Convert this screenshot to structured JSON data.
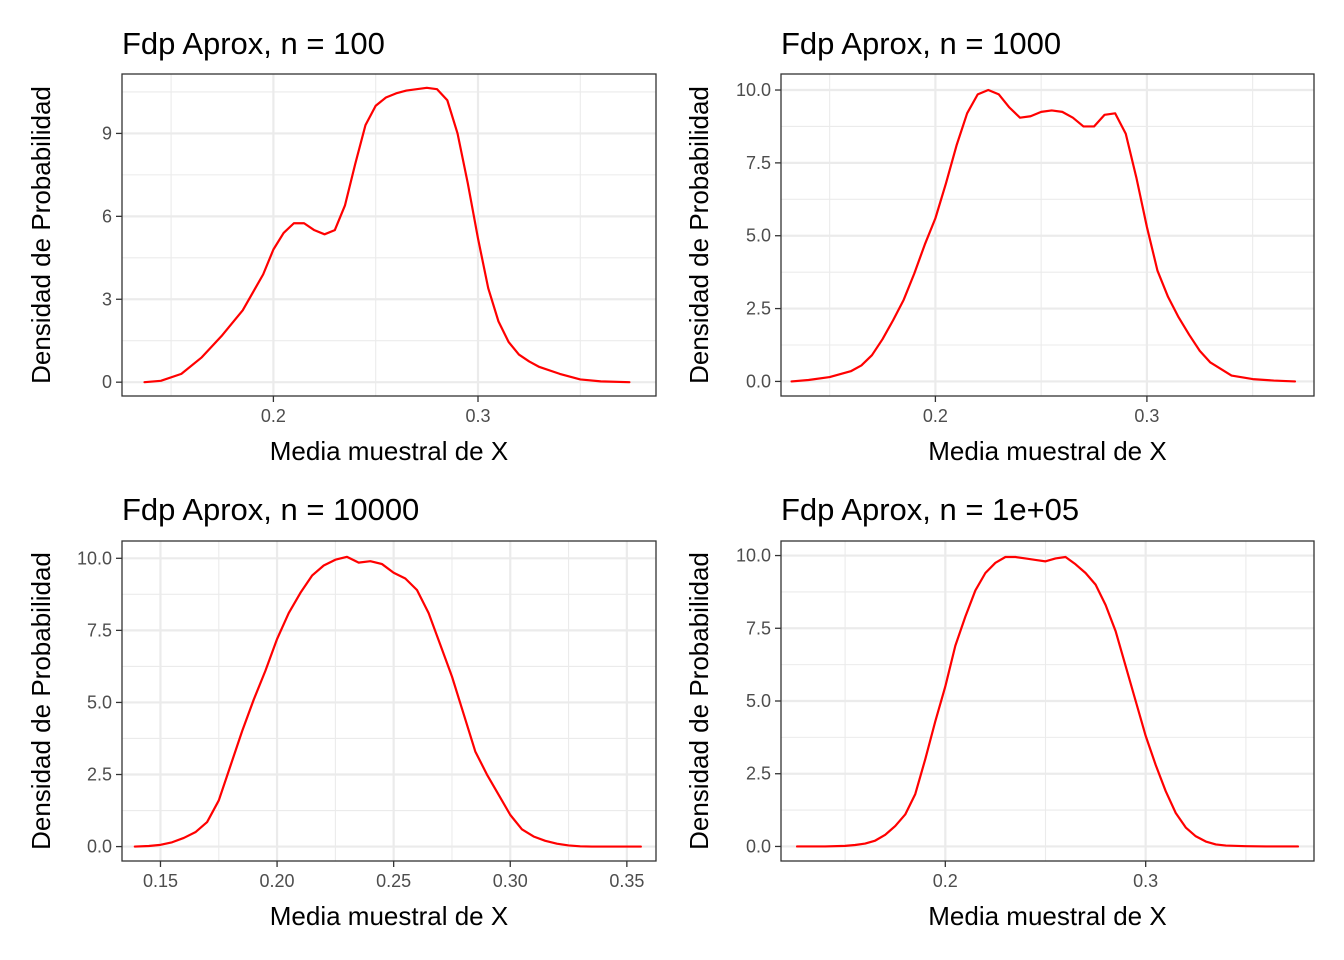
{
  "chart_data": [
    {
      "type": "line",
      "title": "Fdp Aprox, n = 100",
      "xlabel": "Media muestral de X",
      "ylabel": "Densidad de Probabilidad",
      "xlim": [
        0.126,
        0.387
      ],
      "ylim": [
        -0.5,
        11.15
      ],
      "xticks": [
        0.2,
        0.3
      ],
      "xtick_labels": [
        "0.2",
        "0.3"
      ],
      "yticks": [
        0,
        3,
        6,
        9
      ],
      "ytick_labels": [
        "0",
        "3",
        "6",
        "9"
      ],
      "grid": true,
      "color": "#ff0000",
      "series": [
        {
          "x": [
            0.137,
            0.145,
            0.155,
            0.165,
            0.175,
            0.185,
            0.195,
            0.2,
            0.205,
            0.21,
            0.215,
            0.22,
            0.225,
            0.23,
            0.235,
            0.24,
            0.245,
            0.25,
            0.255,
            0.26,
            0.265,
            0.27,
            0.275,
            0.28,
            0.285,
            0.29,
            0.295,
            0.3,
            0.305,
            0.31,
            0.315,
            0.32,
            0.325,
            0.33,
            0.34,
            0.35,
            0.36,
            0.374
          ],
          "y": [
            0,
            0.05,
            0.3,
            0.9,
            1.7,
            2.6,
            3.9,
            4.8,
            5.4,
            5.75,
            5.75,
            5.5,
            5.35,
            5.5,
            6.4,
            7.9,
            9.3,
            10.0,
            10.3,
            10.45,
            10.55,
            10.6,
            10.65,
            10.6,
            10.2,
            9.0,
            7.2,
            5.2,
            3.4,
            2.2,
            1.45,
            1.0,
            0.75,
            0.55,
            0.3,
            0.1,
            0.03,
            0
          ]
        }
      ]
    },
    {
      "type": "line",
      "title": "Fdp Aprox, n = 1000",
      "xlabel": "Media muestral de X",
      "ylabel": "Densidad de Probabilidad",
      "xlim": [
        0.127,
        0.379
      ],
      "ylim": [
        -0.5,
        10.55
      ],
      "xticks": [
        0.2,
        0.3
      ],
      "xtick_labels": [
        "0.2",
        "0.3"
      ],
      "yticks": [
        0,
        2.5,
        5,
        7.5,
        10
      ],
      "ytick_labels": [
        "0.0",
        "2.5",
        "5.0",
        "7.5",
        "10.0"
      ],
      "grid": true,
      "color": "#ff0000",
      "series": [
        {
          "x": [
            0.132,
            0.14,
            0.15,
            0.16,
            0.165,
            0.17,
            0.175,
            0.18,
            0.185,
            0.19,
            0.195,
            0.2,
            0.205,
            0.21,
            0.215,
            0.22,
            0.225,
            0.23,
            0.235,
            0.24,
            0.245,
            0.25,
            0.255,
            0.26,
            0.265,
            0.27,
            0.275,
            0.28,
            0.285,
            0.29,
            0.295,
            0.3,
            0.305,
            0.31,
            0.315,
            0.32,
            0.325,
            0.33,
            0.34,
            0.35,
            0.36,
            0.37
          ],
          "y": [
            0,
            0.05,
            0.15,
            0.35,
            0.55,
            0.9,
            1.45,
            2.1,
            2.8,
            3.7,
            4.7,
            5.6,
            6.8,
            8.1,
            9.2,
            9.85,
            10.0,
            9.85,
            9.4,
            9.05,
            9.1,
            9.25,
            9.3,
            9.25,
            9.05,
            8.75,
            8.75,
            9.15,
            9.2,
            8.5,
            7.0,
            5.3,
            3.8,
            2.9,
            2.2,
            1.6,
            1.05,
            0.65,
            0.2,
            0.08,
            0.03,
            0
          ]
        }
      ]
    },
    {
      "type": "line",
      "title": "Fdp Aprox, n = 10000",
      "xlabel": "Media muestral de X",
      "ylabel": "Densidad de Probabilidad",
      "xlim": [
        0.1335,
        0.3625
      ],
      "ylim": [
        -0.5,
        10.6
      ],
      "xticks": [
        0.15,
        0.2,
        0.25,
        0.3,
        0.35
      ],
      "xtick_labels": [
        "0.15",
        "0.20",
        "0.25",
        "0.30",
        "0.35"
      ],
      "yticks": [
        0,
        2.5,
        5,
        7.5,
        10
      ],
      "ytick_labels": [
        "0.0",
        "2.5",
        "5.0",
        "7.5",
        "10.0"
      ],
      "grid": true,
      "color": "#ff0000",
      "series": [
        {
          "x": [
            0.139,
            0.145,
            0.15,
            0.155,
            0.16,
            0.165,
            0.17,
            0.175,
            0.18,
            0.185,
            0.19,
            0.195,
            0.2,
            0.205,
            0.21,
            0.215,
            0.22,
            0.225,
            0.23,
            0.235,
            0.24,
            0.245,
            0.25,
            0.255,
            0.26,
            0.265,
            0.27,
            0.275,
            0.28,
            0.285,
            0.29,
            0.295,
            0.3,
            0.305,
            0.31,
            0.315,
            0.32,
            0.325,
            0.33,
            0.335,
            0.34,
            0.345,
            0.35,
            0.356
          ],
          "y": [
            0,
            0.02,
            0.06,
            0.15,
            0.3,
            0.5,
            0.85,
            1.6,
            2.8,
            4.0,
            5.1,
            6.1,
            7.2,
            8.1,
            8.8,
            9.4,
            9.75,
            9.95,
            10.05,
            9.85,
            9.9,
            9.8,
            9.5,
            9.3,
            8.9,
            8.1,
            7.0,
            5.9,
            4.6,
            3.3,
            2.5,
            1.8,
            1.1,
            0.6,
            0.35,
            0.2,
            0.1,
            0.04,
            0.01,
            0,
            0,
            0,
            0,
            0
          ]
        }
      ]
    },
    {
      "type": "line",
      "title": "Fdp Aprox, n = 1e+05",
      "xlabel": "Media muestral de X",
      "ylabel": "Densidad de Probabilidad",
      "xlim": [
        0.118,
        0.384
      ],
      "ylim": [
        -0.5,
        10.5
      ],
      "xticks": [
        0.2,
        0.3
      ],
      "xtick_labels": [
        "0.2",
        "0.3"
      ],
      "yticks": [
        0,
        2.5,
        5,
        7.5,
        10
      ],
      "ytick_labels": [
        "0.0",
        "2.5",
        "5.0",
        "7.5",
        "10.0"
      ],
      "grid": true,
      "color": "#ff0000",
      "series": [
        {
          "x": [
            0.126,
            0.14,
            0.15,
            0.155,
            0.16,
            0.165,
            0.17,
            0.175,
            0.18,
            0.185,
            0.19,
            0.195,
            0.2,
            0.205,
            0.21,
            0.215,
            0.22,
            0.225,
            0.23,
            0.235,
            0.24,
            0.245,
            0.25,
            0.255,
            0.26,
            0.265,
            0.27,
            0.275,
            0.28,
            0.285,
            0.29,
            0.295,
            0.3,
            0.305,
            0.31,
            0.315,
            0.32,
            0.325,
            0.33,
            0.335,
            0.34,
            0.35,
            0.36,
            0.37,
            0.376
          ],
          "y": [
            0,
            0,
            0.02,
            0.05,
            0.1,
            0.2,
            0.4,
            0.7,
            1.1,
            1.8,
            3.0,
            4.3,
            5.5,
            6.9,
            7.9,
            8.8,
            9.4,
            9.75,
            9.95,
            9.95,
            9.9,
            9.85,
            9.8,
            9.9,
            9.95,
            9.7,
            9.4,
            9.0,
            8.3,
            7.4,
            6.2,
            5.0,
            3.8,
            2.8,
            1.9,
            1.15,
            0.65,
            0.35,
            0.17,
            0.07,
            0.03,
            0.01,
            0,
            0,
            0
          ]
        }
      ]
    }
  ]
}
